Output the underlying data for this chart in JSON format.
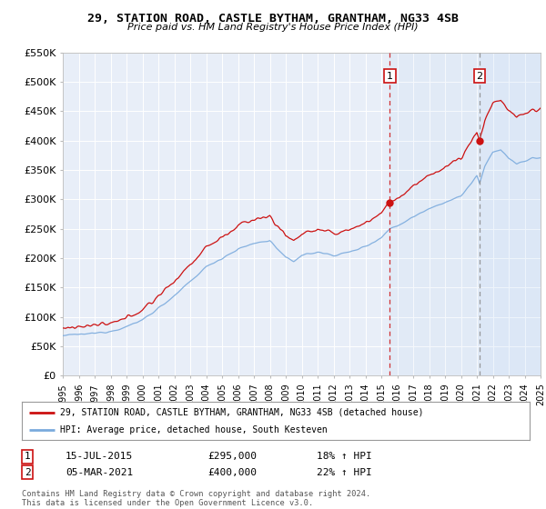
{
  "title": "29, STATION ROAD, CASTLE BYTHAM, GRANTHAM, NG33 4SB",
  "subtitle": "Price paid vs. HM Land Registry's House Price Index (HPI)",
  "bg_color": "#ffffff",
  "plot_bg_color": "#e8eef8",
  "grid_color": "#ffffff",
  "hpi_color": "#7aaadd",
  "price_color": "#cc1111",
  "sale1_date_x": 2015.54,
  "sale1_price": 295000,
  "sale2_date_x": 2021.17,
  "sale2_price": 400000,
  "xmin": 1995,
  "xmax": 2025,
  "ymin": 0,
  "ymax": 550000,
  "yticks": [
    0,
    50000,
    100000,
    150000,
    200000,
    250000,
    300000,
    350000,
    400000,
    450000,
    500000,
    550000
  ],
  "ytick_labels": [
    "£0",
    "£50K",
    "£100K",
    "£150K",
    "£200K",
    "£250K",
    "£300K",
    "£350K",
    "£400K",
    "£450K",
    "£500K",
    "£550K"
  ],
  "legend_line1": "29, STATION ROAD, CASTLE BYTHAM, GRANTHAM, NG33 4SB (detached house)",
  "legend_line2": "HPI: Average price, detached house, South Kesteven",
  "annotation1_date": "15-JUL-2015",
  "annotation1_price": "£295,000",
  "annotation1_hpi": "18% ↑ HPI",
  "annotation2_date": "05-MAR-2021",
  "annotation2_price": "£400,000",
  "annotation2_hpi": "22% ↑ HPI",
  "footer": "Contains HM Land Registry data © Crown copyright and database right 2024.\nThis data is licensed under the Open Government Licence v3.0."
}
